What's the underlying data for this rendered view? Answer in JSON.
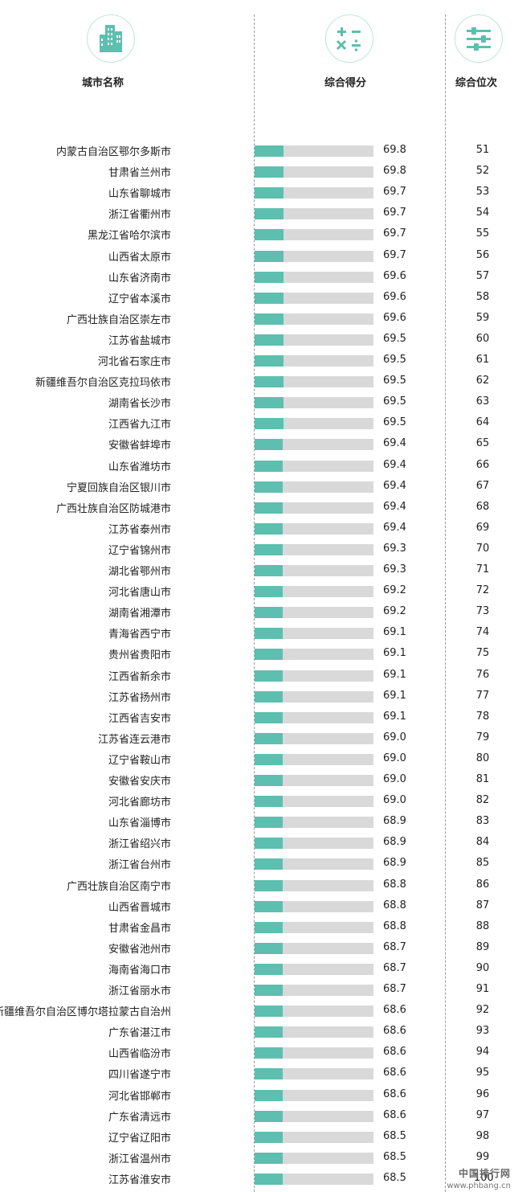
{
  "headers": {
    "city": "城市名称",
    "score": "综合得分",
    "rank": "综合位次"
  },
  "colors": {
    "bar_fill": "#5dbfaf",
    "bar_track": "#d9d9d9",
    "icon": "#5dbfaf"
  },
  "icons": [
    "building-icon",
    "calculator-symbols-icon",
    "sliders-icon"
  ],
  "watermark": {
    "line1": "中国排行网",
    "line2": "www.phbang.cn"
  },
  "chart_data": {
    "type": "bar",
    "xlim": [
      0,
      100
    ],
    "categories": [
      "内蒙古自治区鄂尔多斯市",
      "甘肃省兰州市",
      "山东省聊城市",
      "浙江省衢州市",
      "黑龙江省哈尔滨市",
      "山西省太原市",
      "山东省济南市",
      "辽宁省本溪市",
      "广西壮族自治区崇左市",
      "江苏省盐城市",
      "河北省石家庄市",
      "新疆维吾尔自治区克拉玛依市",
      "湖南省长沙市",
      "江西省九江市",
      "安徽省蚌埠市",
      "山东省潍坊市",
      "宁夏回族自治区银川市",
      "广西壮族自治区防城港市",
      "江苏省泰州市",
      "辽宁省锦州市",
      "湖北省鄂州市",
      "河北省唐山市",
      "湖南省湘潭市",
      "青海省西宁市",
      "贵州省贵阳市",
      "江西省新余市",
      "江苏省扬州市",
      "江西省吉安市",
      "江苏省连云港市",
      "辽宁省鞍山市",
      "安徽省安庆市",
      "河北省廊坊市",
      "山东省淄博市",
      "浙江省绍兴市",
      "浙江省台州市",
      "广西壮族自治区南宁市",
      "山西省晋城市",
      "甘肃省金昌市",
      "安徽省池州市",
      "海南省海口市",
      "浙江省丽水市",
      "新疆维吾尔自治区博尔塔拉蒙古自治州",
      "广东省湛江市",
      "山西省临汾市",
      "四川省遂宁市",
      "河北省邯郸市",
      "广东省清远市",
      "辽宁省辽阳市",
      "浙江省温州市",
      "江苏省淮安市"
    ],
    "values": [
      69.8,
      69.8,
      69.7,
      69.7,
      69.7,
      69.7,
      69.6,
      69.6,
      69.6,
      69.5,
      69.5,
      69.5,
      69.5,
      69.5,
      69.4,
      69.4,
      69.4,
      69.4,
      69.4,
      69.3,
      69.3,
      69.2,
      69.2,
      69.1,
      69.1,
      69.1,
      69.1,
      69.1,
      69.0,
      69.0,
      69.0,
      69.0,
      68.9,
      68.9,
      68.9,
      68.8,
      68.8,
      68.8,
      68.7,
      68.7,
      68.7,
      68.6,
      68.6,
      68.6,
      68.6,
      68.6,
      68.6,
      68.5,
      68.5,
      68.5
    ],
    "ranks": [
      51,
      52,
      53,
      54,
      55,
      56,
      57,
      58,
      59,
      60,
      61,
      62,
      63,
      64,
      65,
      66,
      67,
      68,
      69,
      70,
      71,
      72,
      73,
      74,
      75,
      76,
      77,
      78,
      79,
      80,
      81,
      82,
      83,
      84,
      85,
      86,
      87,
      88,
      89,
      90,
      91,
      92,
      93,
      94,
      95,
      96,
      97,
      98,
      99,
      100
    ]
  }
}
